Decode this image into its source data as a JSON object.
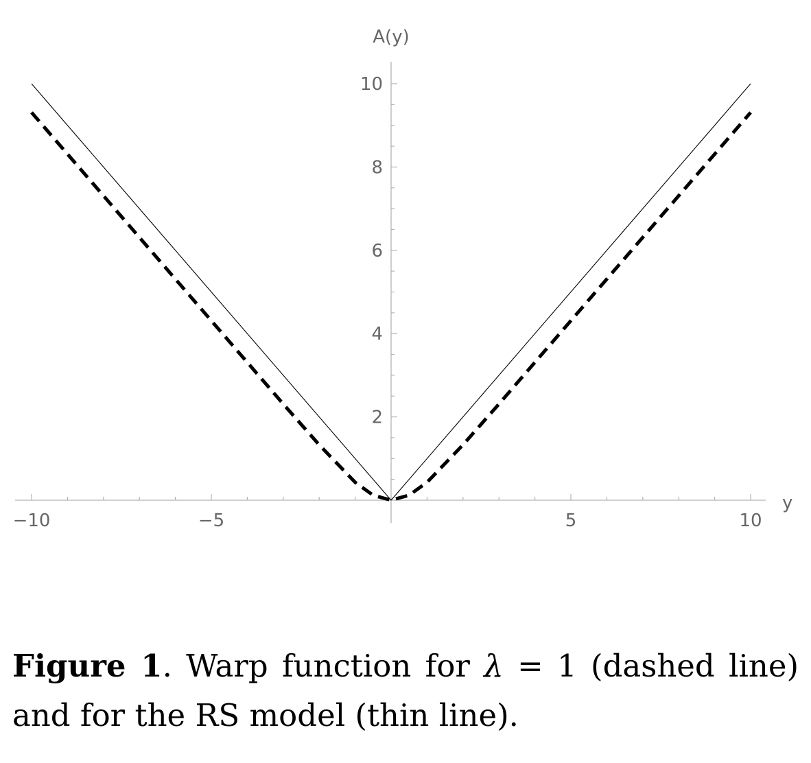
{
  "chart_data": {
    "type": "line",
    "title": "",
    "xlabel": "y",
    "ylabel": "A(y)",
    "xlim": [
      -10.5,
      10.5
    ],
    "ylim": [
      -0.5,
      10.5
    ],
    "x_ticks": [
      -10,
      -5,
      5,
      10
    ],
    "x_tick_labels": [
      "−10",
      "−5",
      "5",
      "10"
    ],
    "y_ticks": [
      2,
      4,
      6,
      8,
      10
    ],
    "y_tick_labels": [
      "2",
      "4",
      "6",
      "8",
      "10"
    ],
    "grid": false,
    "legend": "none",
    "series": [
      {
        "style": "dashed",
        "x": [
          -10,
          -9,
          -8,
          -7,
          -6,
          -5,
          -4,
          -3,
          -2,
          -1,
          -0.5,
          0,
          0.5,
          1,
          2,
          3,
          4,
          5,
          6,
          7,
          8,
          9,
          10
        ],
        "y": [
          9.31,
          8.31,
          7.31,
          6.31,
          5.31,
          4.31,
          3.31,
          2.31,
          1.33,
          0.43,
          0.12,
          0,
          0.12,
          0.43,
          1.33,
          2.31,
          3.31,
          4.31,
          5.31,
          6.31,
          7.31,
          8.31,
          9.31
        ]
      },
      {
        "style": "thin",
        "x": [
          -10,
          0,
          10
        ],
        "y": [
          10,
          0,
          10
        ]
      }
    ]
  },
  "caption": {
    "label": "Figure 1",
    "text_before": ".  Warp function for ",
    "lambda_symbol": "λ",
    "text_after": " = 1 (dashed line) and for the RS model (thin line)."
  }
}
